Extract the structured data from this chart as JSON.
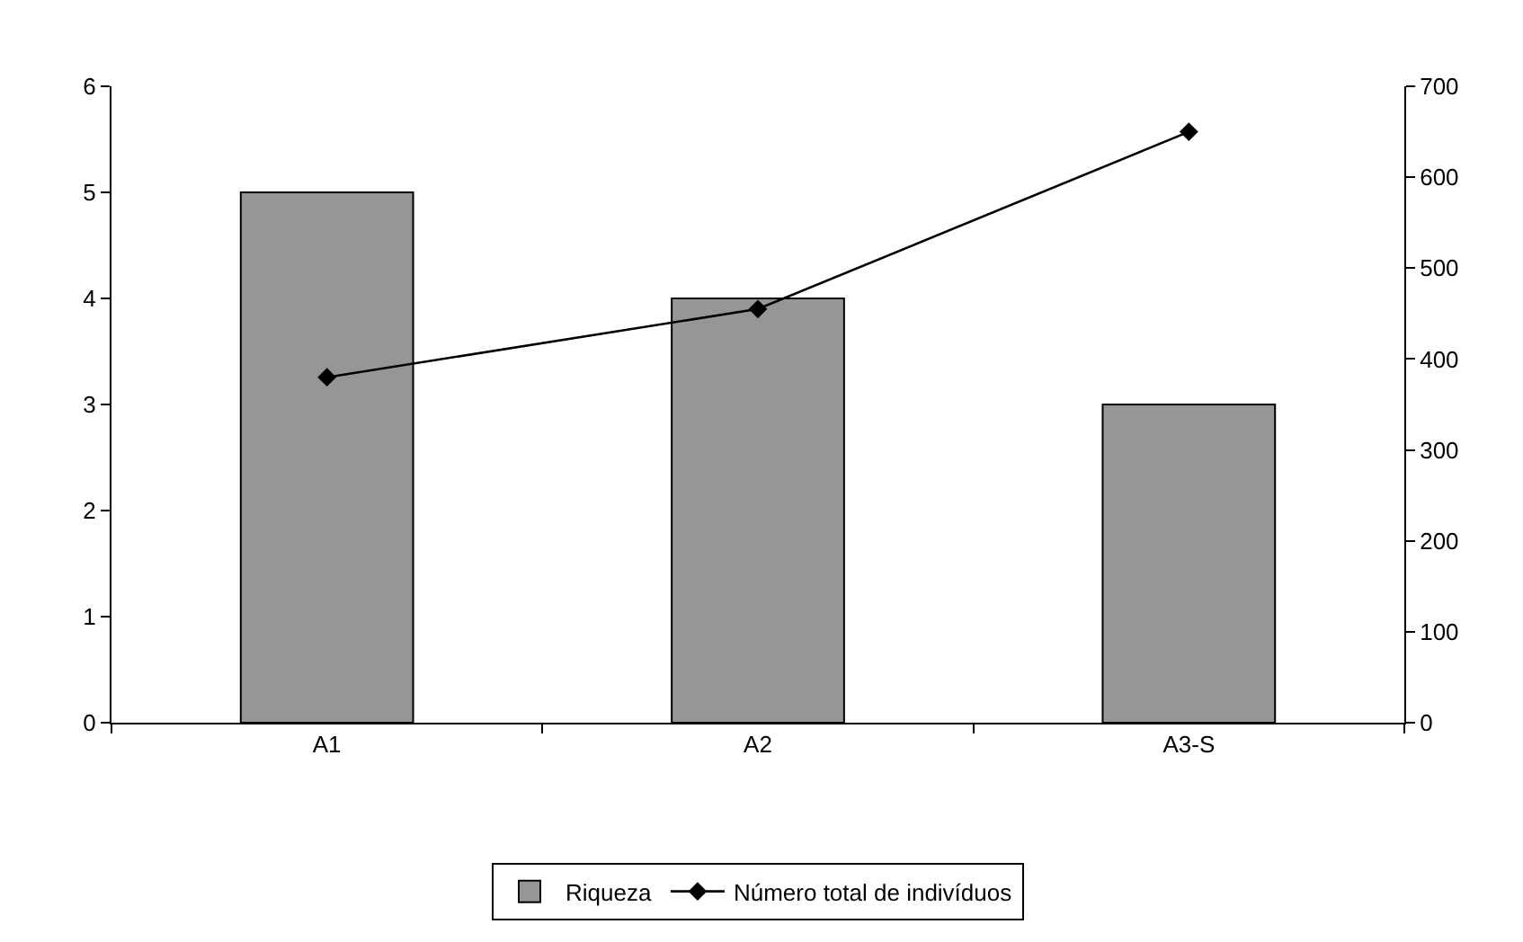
{
  "chart_data": {
    "type": "bar",
    "categories": [
      "A1",
      "A2",
      "A3-S"
    ],
    "series": [
      {
        "name": "Riqueza",
        "color": "#969696",
        "values": [
          5,
          4,
          3
        ]
      },
      {
        "name": "Número total de indivíduos",
        "type": "line",
        "axis": "y2",
        "color": "#000000",
        "values": [
          380,
          455,
          650
        ]
      }
    ],
    "ylim": [
      0,
      6
    ],
    "yticks": [
      0,
      1,
      2,
      3,
      4,
      5,
      6
    ],
    "y2lim": [
      0,
      700
    ],
    "y2ticks": [
      0,
      100,
      200,
      300,
      400,
      500,
      600,
      700
    ],
    "legend": "bottom",
    "marker": "diamond",
    "line_style": "solid"
  }
}
